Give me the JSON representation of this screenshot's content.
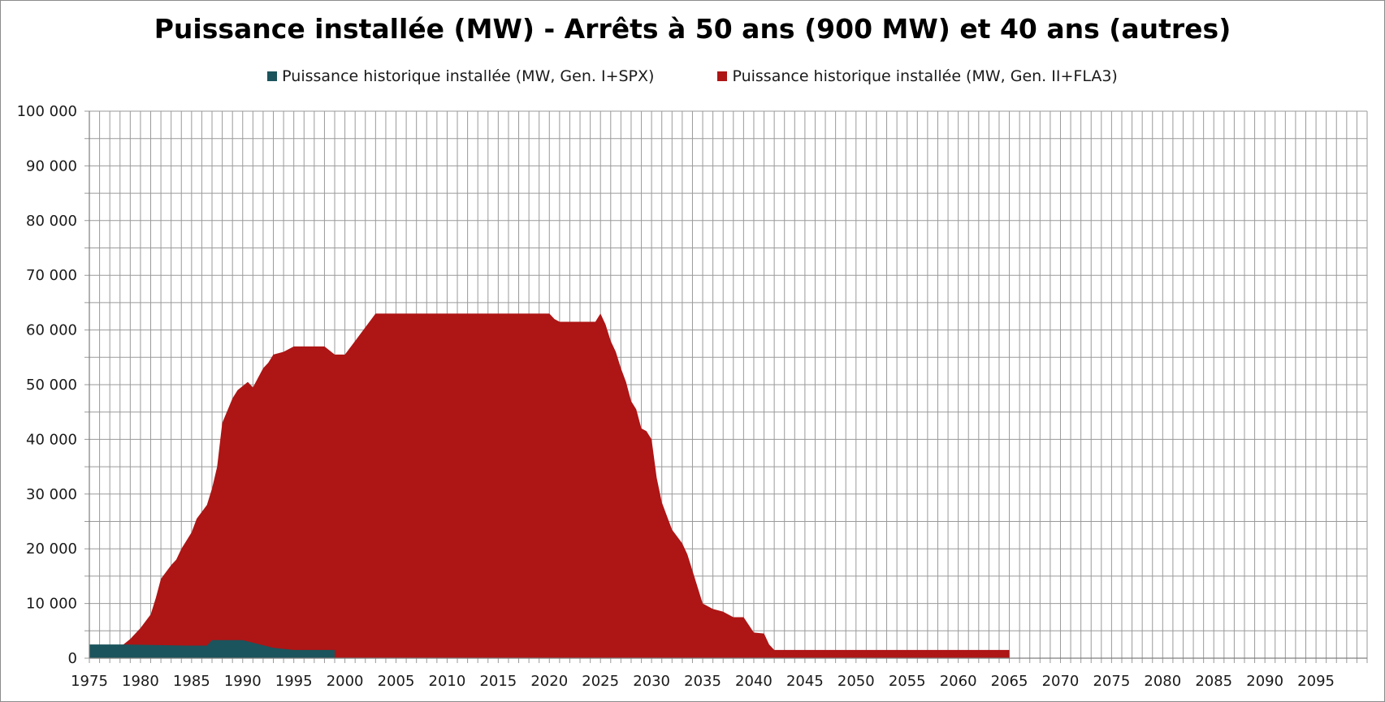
{
  "chart_data": {
    "type": "area",
    "title": "Puissance installée (MW) - Arrêts à 50 ans (900 MW) et 40 ans (autres)",
    "xlabel": "",
    "ylabel": "",
    "xlim": [
      1975,
      2100
    ],
    "ylim": [
      0,
      100000
    ],
    "grid": true,
    "legend_position": "top",
    "x_tick_labels": [
      "1975",
      "1980",
      "1985",
      "1990",
      "1995",
      "2000",
      "2005",
      "2010",
      "2015",
      "2020",
      "2025",
      "2030",
      "2035",
      "2040",
      "2045",
      "2050",
      "2055",
      "2060",
      "2065",
      "2070",
      "2075",
      "2080",
      "2085",
      "2090",
      "2095"
    ],
    "y_tick_labels": [
      "0",
      "10 000",
      "20 000",
      "30 000",
      "40 000",
      "50 000",
      "60 000",
      "70 000",
      "80 000",
      "90 000",
      "100 000"
    ],
    "y_tick_values": [
      0,
      10000,
      20000,
      30000,
      40000,
      50000,
      60000,
      70000,
      80000,
      90000,
      100000
    ],
    "series": [
      {
        "name": "Puissance historique installée (MW, Gen. I+SPX)",
        "color": "#1b545c",
        "x": [
          1975,
          1978.5,
          1984.5,
          1986.5,
          1987,
          1990,
          1991.5,
          1993,
          1995,
          1999,
          1999.01
        ],
        "y": [
          2500,
          2500,
          2300,
          2300,
          3300,
          3300,
          2600,
          1900,
          1500,
          1500,
          0
        ]
      },
      {
        "name": "Puissance historique installée (MW, Gen. II+FLA3)",
        "color": "#ae1515",
        "x": [
          1975,
          1977.5,
          1978,
          1979,
          1980,
          1981,
          1981.5,
          1982,
          1983,
          1983.5,
          1984,
          1985,
          1985.5,
          1986.5,
          1987,
          1987.5,
          1988,
          1989,
          1989.5,
          1990.5,
          1991,
          1992,
          1992.5,
          1993,
          1994,
          1995,
          1996,
          1997,
          1998,
          1999,
          2000,
          2001,
          2002,
          2003,
          2005,
          2010,
          2015,
          2020,
          2020.5,
          2021,
          2024.5,
          2025,
          2025.5,
          2026,
          2026.5,
          2027,
          2027.5,
          2028,
          2028.5,
          2029,
          2029.5,
          2030,
          2030.5,
          2031,
          2031.5,
          2032,
          2033,
          2033.5,
          2034,
          2034.5,
          2035,
          2035.5,
          2036,
          2037,
          2038,
          2039,
          2040,
          2041,
          2041.5,
          2042,
          2042.5,
          2045,
          2050,
          2055,
          2060,
          2065,
          2065.01
        ],
        "y": [
          0,
          0,
          2000,
          3500,
          5500,
          8000,
          11000,
          14500,
          17000,
          18000,
          20000,
          23000,
          25500,
          28000,
          31000,
          35000,
          43000,
          47500,
          49000,
          50500,
          49500,
          53000,
          54000,
          55500,
          56000,
          57000,
          57000,
          57000,
          57000,
          55500,
          55500,
          58000,
          60500,
          63000,
          63000,
          63000,
          63000,
          63000,
          62000,
          61500,
          61500,
          63000,
          61000,
          58000,
          56000,
          53000,
          50500,
          47000,
          45500,
          42000,
          41500,
          40000,
          33000,
          28500,
          26000,
          23500,
          21000,
          19000,
          16000,
          13000,
          10000,
          9500,
          9000,
          8500,
          7500,
          7500,
          4700,
          4500,
          2500,
          1500,
          1500,
          1500,
          1500,
          1500,
          1500,
          1500,
          0
        ]
      }
    ]
  }
}
